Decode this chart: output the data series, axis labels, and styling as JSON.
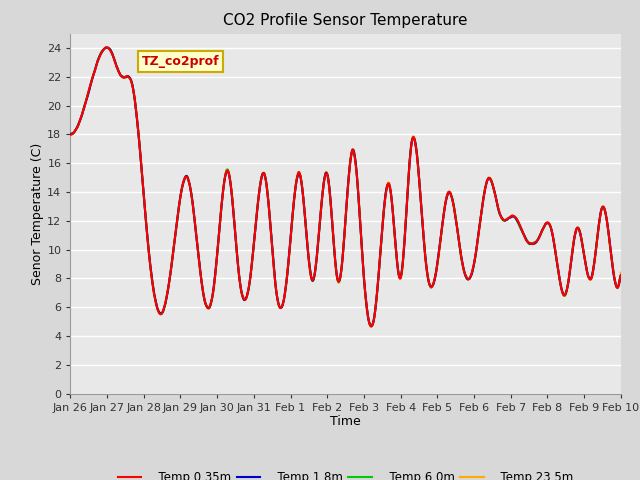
{
  "title": "CO2 Profile Sensor Temperature",
  "xlabel": "Time",
  "ylabel": "Senor Temperature (C)",
  "annotation_text": "TZ_co2prof",
  "annotation_bg": "#ffffcc",
  "annotation_border": "#ccaa00",
  "annotation_color": "#cc0000",
  "ylim": [
    0,
    25
  ],
  "yticks": [
    0,
    2,
    4,
    6,
    8,
    10,
    12,
    14,
    16,
    18,
    20,
    22,
    24
  ],
  "bg_color": "#d8d8d8",
  "plot_bg": "#e8e8e8",
  "grid_color": "#ffffff",
  "series_colors": {
    "Temp 0.35m": "#ff0000",
    "Temp 1.8m": "#0000cc",
    "Temp 6.0m": "#00cc00",
    "Temp 23.5m": "#ffaa00"
  },
  "xtick_labels": [
    "Jan 26",
    "Jan 27",
    "Jan 28",
    "Jan 29",
    "Jan 30",
    "Jan 31",
    "Feb 1",
    "Feb 2",
    "Feb 3",
    "Feb 4",
    "Feb 5",
    "Feb 6",
    "Feb 7",
    "Feb 8",
    "Feb 9",
    "Feb 10"
  ],
  "keypoints_t": [
    0.0,
    0.5,
    1.1,
    1.4,
    1.7,
    2.1,
    2.5,
    2.8,
    3.2,
    3.6,
    3.9,
    4.3,
    4.6,
    4.9,
    5.3,
    5.6,
    5.9,
    6.25,
    6.6,
    7.0,
    7.3,
    7.7,
    8.0,
    8.3,
    8.7,
    9.0,
    9.3,
    9.7,
    10.0,
    10.3,
    10.7,
    11.0,
    11.4,
    11.7,
    12.1,
    12.4,
    12.8,
    13.1,
    13.5,
    13.8,
    14.2,
    14.5,
    14.8,
    15.0
  ],
  "keypoints_v": [
    18.0,
    21.0,
    23.8,
    22.0,
    21.3,
    10.8,
    5.6,
    9.8,
    15.0,
    7.3,
    7.2,
    15.5,
    8.1,
    8.0,
    15.2,
    7.3,
    8.0,
    15.3,
    7.8,
    15.3,
    7.7,
    17.0,
    8.0,
    5.6,
    14.5,
    8.0,
    17.5,
    8.8,
    9.0,
    14.0,
    8.8,
    9.0,
    15.0,
    12.5,
    12.3,
    10.8,
    11.0,
    11.5,
    6.9,
    11.5,
    8.0,
    13.0,
    8.4,
    8.4
  ]
}
